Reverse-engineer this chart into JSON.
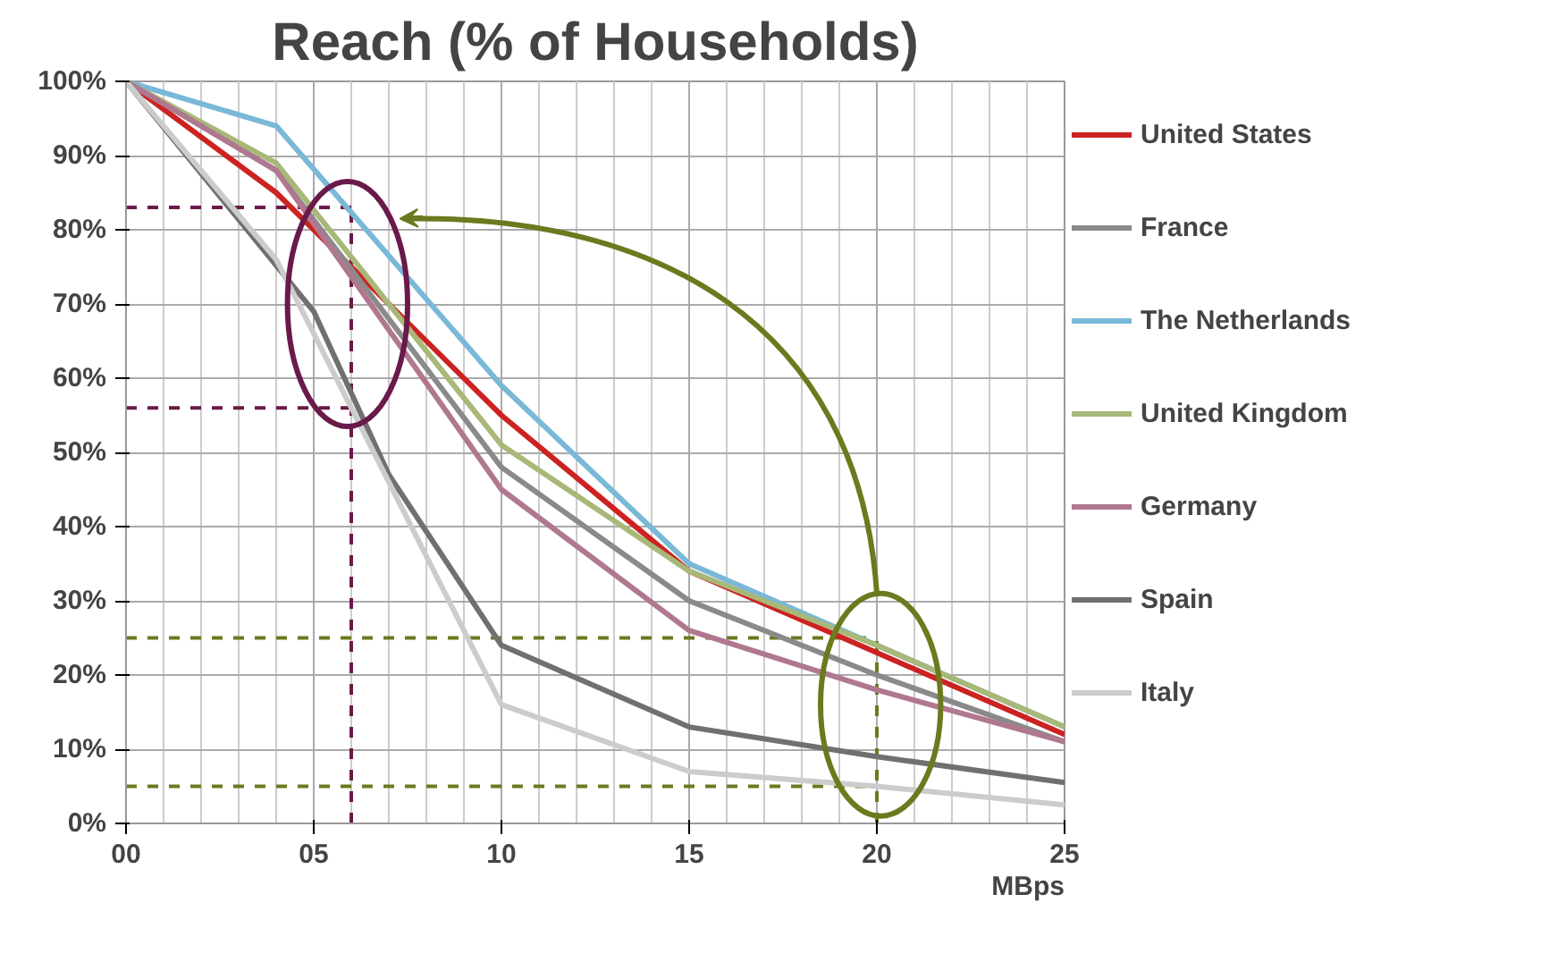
{
  "chart_data": {
    "type": "line",
    "title": "Reach (% of Households)",
    "xlabel": "MBps",
    "x": [
      0,
      4,
      10,
      15,
      20,
      25
    ],
    "series": [
      {
        "name": "United States",
        "color": "#cc2222",
        "values": [
          100,
          85,
          55,
          34,
          23,
          12
        ]
      },
      {
        "name": "France",
        "color": "#8a8a8a",
        "values": [
          100,
          88,
          48,
          30,
          20,
          11
        ]
      },
      {
        "name": "The Netherlands",
        "color": "#7ab8d8",
        "values": [
          100,
          94,
          59,
          35,
          24,
          13
        ]
      },
      {
        "name": "United Kingdom",
        "color": "#a8b878",
        "values": [
          100,
          89,
          51,
          34,
          24,
          13
        ]
      },
      {
        "name": "Germany",
        "color": "#b07890",
        "values": [
          100,
          88,
          45,
          26,
          18,
          11
        ]
      },
      {
        "name": "Spain",
        "color": "#707070",
        "x": [
          0,
          5,
          7,
          10,
          15,
          20,
          25
        ],
        "values": [
          100,
          69,
          47,
          24,
          13,
          9,
          5.5
        ]
      },
      {
        "name": "Italy",
        "color": "#cccccc",
        "values": [
          100,
          76,
          16,
          7,
          5,
          2.5
        ]
      }
    ],
    "xlim": [
      0,
      25
    ],
    "ylim": [
      0,
      100
    ],
    "xticks": [
      {
        "value": 0,
        "label": "00"
      },
      {
        "value": 5,
        "label": "05"
      },
      {
        "value": 10,
        "label": "10"
      },
      {
        "value": 15,
        "label": "15"
      },
      {
        "value": 20,
        "label": "20"
      },
      {
        "value": 25,
        "label": "25"
      }
    ],
    "yticks": [
      {
        "value": 0,
        "label": "0%"
      },
      {
        "value": 10,
        "label": "10%"
      },
      {
        "value": 20,
        "label": "20%"
      },
      {
        "value": 30,
        "label": "30%"
      },
      {
        "value": 40,
        "label": "40%"
      },
      {
        "value": 50,
        "label": "50%"
      },
      {
        "value": 60,
        "label": "60%"
      },
      {
        "value": 70,
        "label": "70%"
      },
      {
        "value": 80,
        "label": "80%"
      },
      {
        "value": 90,
        "label": "90%"
      },
      {
        "value": 100,
        "label": "100%"
      }
    ],
    "ref_lines": [
      {
        "axis": "x",
        "value": 6,
        "color": "#6a1a4a",
        "line_style": "dashed"
      },
      {
        "axis": "y",
        "value": 83,
        "color": "#6a1a4a",
        "line_style": "dashed"
      },
      {
        "axis": "y",
        "value": 56,
        "color": "#6a1a4a",
        "line_style": "dashed"
      },
      {
        "axis": "x",
        "value": 20,
        "color": "#6b7a1e",
        "line_style": "dashed"
      },
      {
        "axis": "y",
        "value": 25,
        "color": "#6b7a1e",
        "line_style": "dashed"
      },
      {
        "axis": "y",
        "value": 5,
        "color": "#6b7a1e",
        "line_style": "dashed"
      }
    ],
    "grid": true,
    "legend": "right",
    "line_style": "solid"
  }
}
